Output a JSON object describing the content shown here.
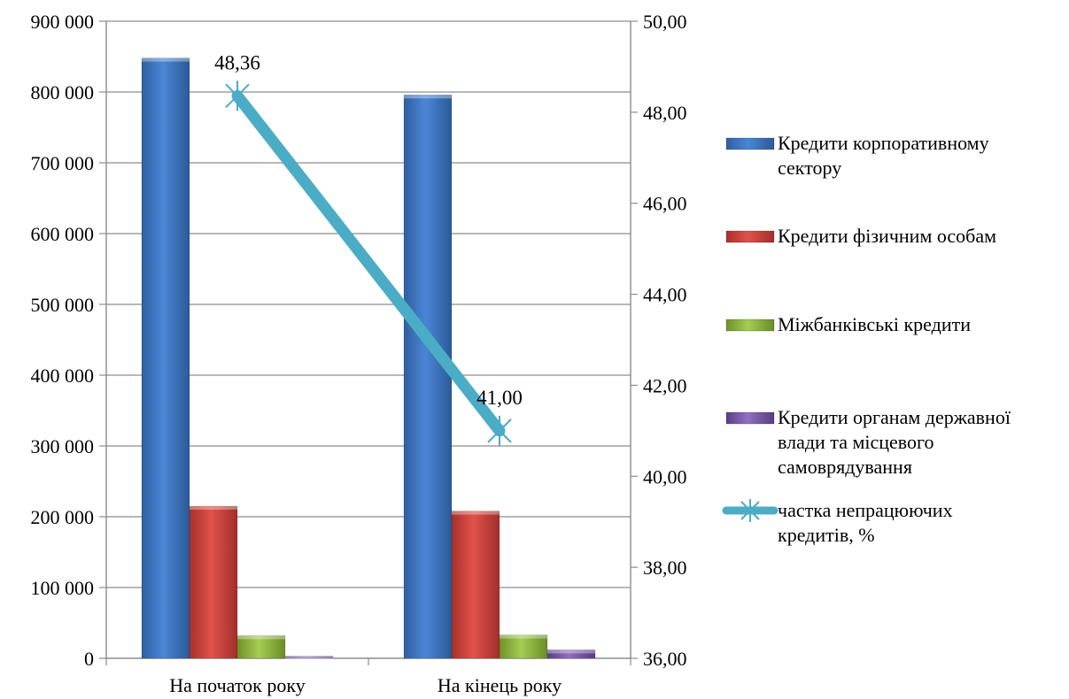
{
  "chart_data": {
    "type": "bar",
    "categories": [
      "На початок року",
      "На кінець року"
    ],
    "series": [
      {
        "name": "Кредити корпоративному сектору",
        "values": [
          848000,
          796000
        ],
        "color": "#3c78c8",
        "axis": "left",
        "kind": "bar"
      },
      {
        "name": "Кредити фізичним особам",
        "values": [
          215000,
          208000
        ],
        "color": "#d0443e",
        "axis": "left",
        "kind": "bar"
      },
      {
        "name": "Міжбанківські кредити",
        "values": [
          32000,
          33000
        ],
        "color": "#8fb63c",
        "axis": "left",
        "kind": "bar"
      },
      {
        "name": "Кредити органам державної влади та місцевого самоврядування",
        "values": [
          3000,
          12000
        ],
        "color": "#7b58a8",
        "axis": "left",
        "kind": "bar"
      },
      {
        "name": "частка непрацюючих кредитів, %",
        "values": [
          48.36,
          41.0
        ],
        "color": "#4bacc6",
        "axis": "right",
        "kind": "line",
        "data_labels": [
          "48,36",
          "41,00"
        ]
      }
    ],
    "y_left": {
      "ylim": [
        0,
        900000
      ],
      "ticks": [
        0,
        100000,
        200000,
        300000,
        400000,
        500000,
        600000,
        700000,
        800000,
        900000
      ],
      "tick_labels": [
        "0",
        "100 000",
        "200 000",
        "300 000",
        "400 000",
        "500 000",
        "600 000",
        "700 000",
        "800 000",
        "900 000"
      ]
    },
    "y_right": {
      "ylim": [
        36,
        50
      ],
      "ticks": [
        36,
        38,
        40,
        42,
        44,
        46,
        48,
        50
      ],
      "tick_labels": [
        "36,00",
        "38,00",
        "40,00",
        "42,00",
        "44,00",
        "46,00",
        "48,00",
        "50,00"
      ]
    },
    "grid": true,
    "legend": {
      "position": "right",
      "entries": [
        {
          "series": 0,
          "lines": [
            "Кредити корпоративному",
            "сектору"
          ]
        },
        {
          "series": 1,
          "lines": [
            "Кредити фізичним особам"
          ]
        },
        {
          "series": 2,
          "lines": [
            "Міжбанківські кредити"
          ]
        },
        {
          "series": 3,
          "lines": [
            "Кредити органам державної",
            "влади та місцевого",
            "самоврядування"
          ]
        },
        {
          "series": 4,
          "lines": [
            "частка непрацюючих",
            "кредитів, %"
          ]
        }
      ]
    }
  }
}
